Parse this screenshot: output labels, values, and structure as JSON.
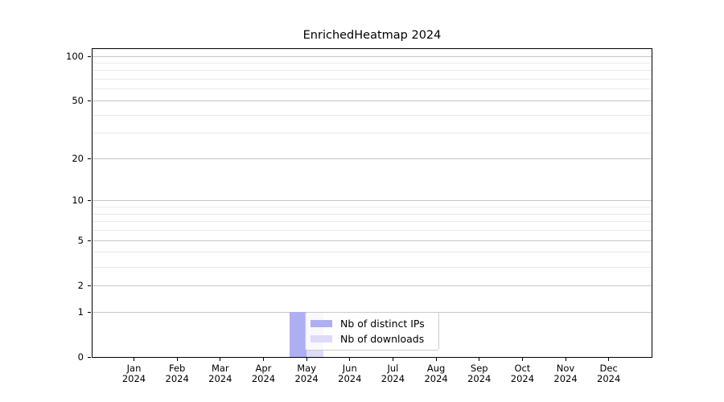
{
  "chart_data": {
    "type": "bar",
    "title": "EnrichedHeatmap 2024",
    "categories": [
      "Jan",
      "Feb",
      "Mar",
      "Apr",
      "May",
      "Jun",
      "Jul",
      "Aug",
      "Sep",
      "Oct",
      "Nov",
      "Dec"
    ],
    "year_label": "2024",
    "series": [
      {
        "name": "Nb of distinct IPs",
        "color": "#aeaef2",
        "values": [
          0,
          0,
          0,
          0,
          1,
          0,
          0,
          0,
          0,
          0,
          0,
          0
        ]
      },
      {
        "name": "Nb of downloads",
        "color": "#dcdcf8",
        "values": [
          0,
          0,
          0,
          0,
          1,
          0,
          0,
          0,
          0,
          0,
          0,
          0
        ]
      }
    ],
    "xlabel": "",
    "ylabel": "",
    "yscale": "log1p",
    "ylim": [
      0,
      114
    ],
    "y_major_ticks": [
      0,
      1,
      2,
      5,
      10,
      20,
      50,
      100
    ],
    "y_minor_ticks": [
      3,
      4,
      6,
      7,
      8,
      9,
      30,
      40,
      60,
      70,
      80,
      90
    ],
    "grid": "horizontal, major and minor",
    "legend_position": "lower center, inside plot",
    "frame_color": "#000000",
    "grid_major_color": "#c6c6c6",
    "grid_minor_color": "#e9e9e9"
  }
}
